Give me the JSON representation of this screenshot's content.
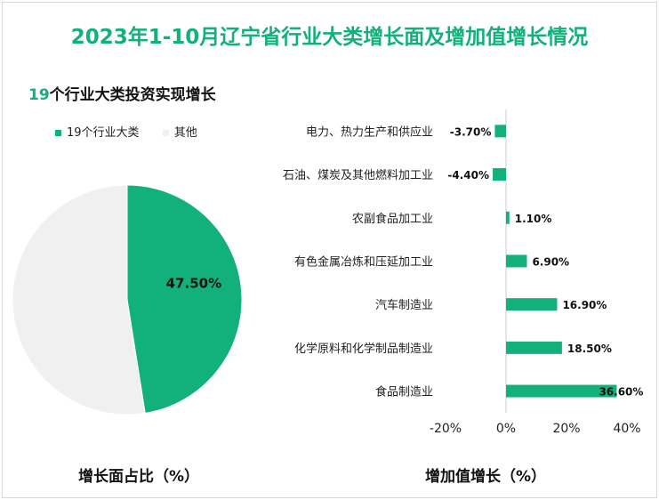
{
  "title": "2023年1-10月辽宁省行业大类增长面及增加值增长情况",
  "subtitle_num": "19",
  "subtitle_text": "个行业大类投资实现增长",
  "colors": {
    "accent": "#12b07a",
    "other": "#f0f0f0",
    "text": "#111111"
  },
  "chart_data": [
    {
      "type": "pie",
      "slices": [
        {
          "name": "19个行业大类",
          "value": 47.5,
          "label": "47.50%",
          "color": "#12b07a"
        },
        {
          "name": "其他",
          "value": 52.5,
          "label": "",
          "color": "#f0f0f0"
        }
      ],
      "legend": [
        "19个行业大类",
        "其他"
      ],
      "legend_position": "top-left",
      "caption": "增长面占比（%）"
    },
    {
      "type": "bar",
      "orientation": "horizontal",
      "categories": [
        "电力、热力生产和供应业",
        "石油、煤炭及其他燃料加工业",
        "农副食品加工业",
        "有色金属冶炼和压延加工业",
        "汽车制造业",
        "化学原料和化学制品制造业",
        "食品制造业"
      ],
      "values": [
        -3.7,
        -4.4,
        1.1,
        6.9,
        16.9,
        18.5,
        36.6
      ],
      "value_labels": [
        "-3.70%",
        "-4.40%",
        "1.10%",
        "6.90%",
        "16.90%",
        "18.50%",
        "36.60%"
      ],
      "xlim": [
        -20,
        40
      ],
      "ticks": [
        -20,
        0,
        20,
        40
      ],
      "tick_labels": [
        "-20%",
        "0%",
        "20%",
        "40%"
      ],
      "caption": "增加值增长（%）",
      "grid": false
    }
  ]
}
